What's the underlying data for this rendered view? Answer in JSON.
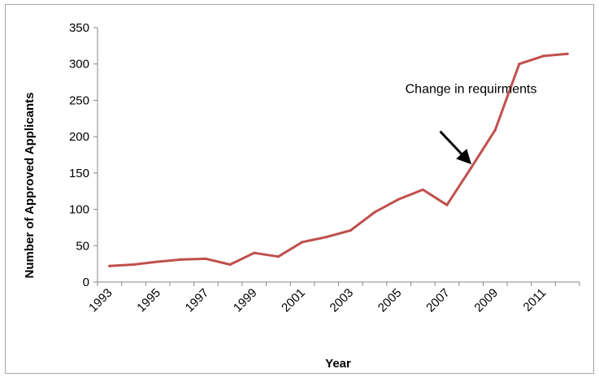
{
  "chart_data": {
    "type": "line",
    "title": "",
    "xlabel": "Year",
    "ylabel": "Number of Approved Applicants",
    "x": [
      1993,
      1994,
      1995,
      1996,
      1997,
      1998,
      1999,
      2000,
      2001,
      2002,
      2003,
      2004,
      2005,
      2006,
      2007,
      2008,
      2009,
      2010,
      2011,
      2012
    ],
    "x_tick_labels": [
      "1993",
      "1995",
      "1997",
      "1999",
      "2001",
      "2003",
      "2005",
      "2007",
      "2009",
      "2011"
    ],
    "series": [
      {
        "values": [
          22,
          24,
          28,
          31,
          32,
          24,
          40,
          35,
          55,
          62,
          71,
          96,
          114,
          127,
          106,
          157,
          209,
          300,
          311,
          314
        ],
        "color": "#c0504d"
      }
    ],
    "ylim": [
      0,
      350
    ],
    "y_ticks": [
      0,
      50,
      100,
      150,
      200,
      250,
      300,
      350
    ],
    "grid": false,
    "legend": "none",
    "annotations": [
      {
        "text": "Change in requirments",
        "points_to_x": 2008,
        "points_to_y": 157
      }
    ]
  }
}
